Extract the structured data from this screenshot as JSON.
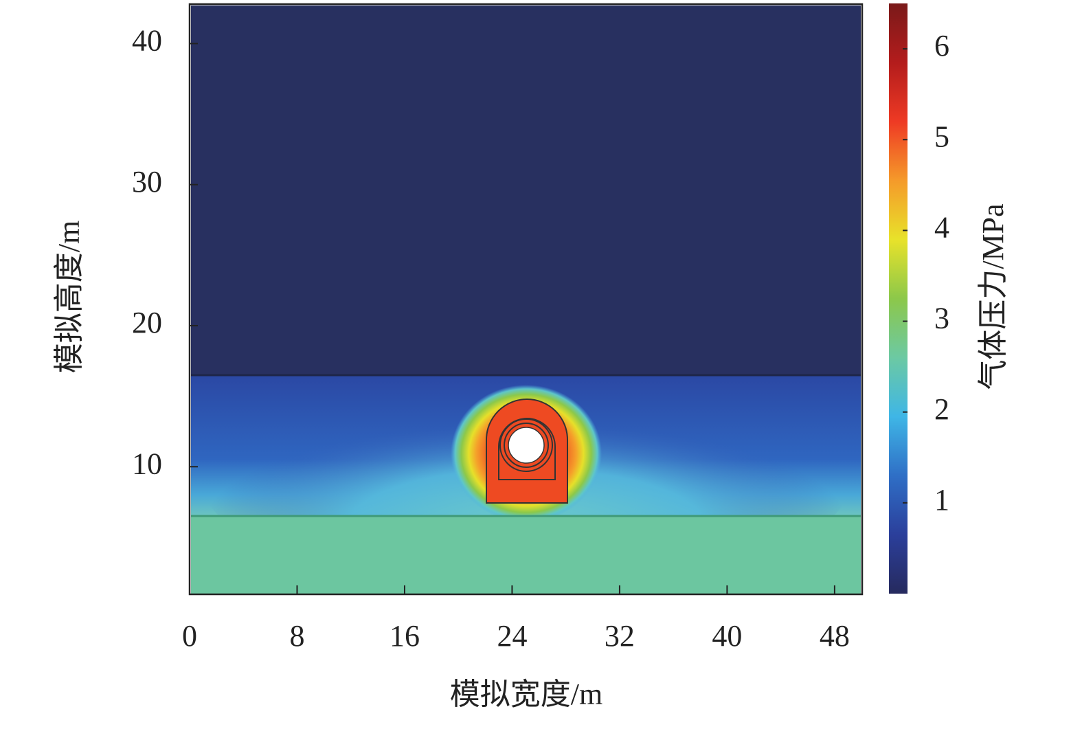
{
  "chart_data": {
    "type": "heatmap",
    "xlabel": "模拟宽度/m",
    "ylabel": "模拟高度/m",
    "xlim": [
      0,
      50
    ],
    "ylim": [
      1,
      42.7
    ],
    "xticks": [
      0,
      8,
      16,
      24,
      32,
      40,
      48
    ],
    "yticks": [
      10,
      20,
      30,
      40
    ],
    "colorbar": {
      "label": "气体压力/MPa",
      "lim": [
        0,
        6.5
      ],
      "ticks": [
        1,
        2,
        3,
        4,
        5,
        6
      ],
      "colors": [
        "#262a5e",
        "#2b3f9b",
        "#2f6fc6",
        "#3fb6e6",
        "#6cc9a3",
        "#8cc84a",
        "#e8e22a",
        "#f59a2a",
        "#ee3a24",
        "#b31c1c",
        "#7a1a1a"
      ]
    }
  }
}
